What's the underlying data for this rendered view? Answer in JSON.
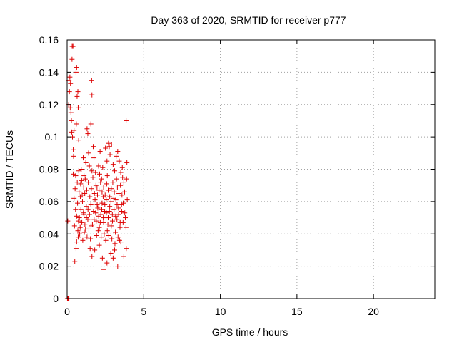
{
  "chart_data": {
    "type": "scatter",
    "title": "Day 363 of 2020, SRMTID for receiver p777",
    "xlabel": "GPS time / hours",
    "ylabel": "SRMTID / TECUs",
    "xlim": [
      0,
      24
    ],
    "ylim": [
      0,
      0.16
    ],
    "x_ticks": [
      0,
      5,
      10,
      15,
      20
    ],
    "x_tick_labels": [
      "0",
      "5",
      "10",
      "15",
      "20"
    ],
    "y_ticks": [
      0,
      0.02,
      0.04,
      0.06,
      0.08,
      0.1,
      0.12,
      0.14,
      0.16
    ],
    "y_tick_labels": [
      "0",
      "0.02",
      "0.04",
      "0.06",
      "0.08",
      "0.1",
      "0.12",
      "0.14",
      "0.16"
    ],
    "grid": true,
    "marker": "plus",
    "color": "#dd0000",
    "series": [
      {
        "name": "SRMTID",
        "points": [
          [
            0.02,
            0.0
          ],
          [
            0.05,
            0.0
          ],
          [
            0.08,
            0.0
          ],
          [
            0.12,
            0.0
          ],
          [
            0.04,
            0.048
          ],
          [
            0.1,
            0.12
          ],
          [
            0.12,
            0.135
          ],
          [
            0.15,
            0.128
          ],
          [
            0.18,
            0.137
          ],
          [
            0.2,
            0.118
          ],
          [
            0.22,
            0.133
          ],
          [
            0.25,
            0.115
          ],
          [
            0.28,
            0.11
          ],
          [
            0.32,
            0.148
          ],
          [
            0.33,
            0.156
          ],
          [
            0.38,
            0.156
          ],
          [
            0.3,
            0.103
          ],
          [
            0.35,
            0.1
          ],
          [
            0.4,
            0.092
          ],
          [
            0.42,
            0.088
          ],
          [
            0.45,
            0.104
          ],
          [
            0.58,
            0.14
          ],
          [
            0.62,
            0.143
          ],
          [
            0.7,
            0.128
          ],
          [
            0.65,
            0.125
          ],
          [
            0.72,
            0.118
          ],
          [
            0.6,
            0.108
          ],
          [
            0.75,
            0.098
          ],
          [
            1.3,
            0.105
          ],
          [
            1.35,
            0.102
          ],
          [
            1.55,
            0.108
          ],
          [
            1.6,
            0.135
          ],
          [
            1.62,
            0.126
          ],
          [
            3.85,
            0.11
          ],
          [
            3.9,
            0.084
          ],
          [
            3.88,
            0.074
          ],
          [
            3.92,
            0.061
          ],
          [
            3.8,
            0.05
          ],
          [
            3.84,
            0.044
          ],
          [
            3.86,
            0.031
          ],
          [
            3.7,
            0.026
          ],
          [
            0.5,
            0.023
          ],
          [
            0.58,
            0.031
          ],
          [
            0.62,
            0.035
          ],
          [
            0.7,
            0.042
          ],
          [
            0.74,
            0.048
          ],
          [
            1.2,
            0.043
          ],
          [
            1.3,
            0.038
          ],
          [
            1.5,
            0.031
          ],
          [
            1.62,
            0.026
          ],
          [
            1.8,
            0.03
          ],
          [
            2.1,
            0.033
          ],
          [
            2.3,
            0.025
          ],
          [
            2.4,
            0.018
          ],
          [
            2.6,
            0.022
          ],
          [
            2.85,
            0.028
          ],
          [
            3.0,
            0.025
          ],
          [
            3.1,
            0.03
          ],
          [
            3.3,
            0.02
          ],
          [
            3.5,
            0.035
          ],
          [
            0.4,
            0.077
          ],
          [
            0.52,
            0.068
          ],
          [
            0.9,
            0.055
          ],
          [
            0.95,
            0.073
          ],
          [
            1.05,
            0.087
          ],
          [
            1.1,
            0.076
          ],
          [
            1.15,
            0.065
          ],
          [
            1.4,
            0.09
          ],
          [
            1.45,
            0.082
          ],
          [
            1.7,
            0.094
          ],
          [
            1.75,
            0.087
          ],
          [
            1.85,
            0.078
          ],
          [
            1.95,
            0.069
          ],
          [
            2.05,
            0.082
          ],
          [
            2.15,
            0.091
          ],
          [
            2.25,
            0.074
          ],
          [
            2.35,
            0.063
          ],
          [
            2.5,
            0.093
          ],
          [
            2.6,
            0.085
          ],
          [
            2.7,
            0.096
          ],
          [
            2.75,
            0.094
          ],
          [
            2.8,
            0.089
          ],
          [
            2.9,
            0.095
          ],
          [
            3.0,
            0.083
          ],
          [
            3.1,
            0.079
          ],
          [
            3.2,
            0.088
          ],
          [
            3.3,
            0.091
          ],
          [
            3.4,
            0.085
          ],
          [
            3.5,
            0.078
          ],
          [
            3.6,
            0.081
          ],
          [
            3.7,
            0.072
          ],
          [
            3.75,
            0.066
          ],
          [
            0.45,
            0.062
          ],
          [
            0.55,
            0.055
          ],
          [
            0.8,
            0.05
          ],
          [
            0.85,
            0.044
          ],
          [
            1.0,
            0.06
          ],
          [
            1.1,
            0.052
          ],
          [
            1.25,
            0.057
          ],
          [
            1.35,
            0.049
          ],
          [
            1.55,
            0.058
          ],
          [
            1.65,
            0.046
          ],
          [
            1.72,
            0.054
          ],
          [
            1.82,
            0.061
          ],
          [
            1.9,
            0.048
          ],
          [
            2.0,
            0.056
          ],
          [
            2.1,
            0.044
          ],
          [
            2.2,
            0.052
          ],
          [
            2.28,
            0.059
          ],
          [
            2.38,
            0.047
          ],
          [
            2.45,
            0.054
          ],
          [
            2.55,
            0.061
          ],
          [
            2.62,
            0.042
          ],
          [
            2.68,
            0.05
          ],
          [
            2.78,
            0.057
          ],
          [
            2.88,
            0.045
          ],
          [
            2.95,
            0.052
          ],
          [
            3.05,
            0.062
          ],
          [
            3.15,
            0.041
          ],
          [
            3.25,
            0.049
          ],
          [
            3.35,
            0.056
          ],
          [
            3.45,
            0.044
          ],
          [
            3.55,
            0.058
          ],
          [
            3.65,
            0.047
          ],
          [
            0.48,
            0.045
          ],
          [
            0.62,
            0.051
          ],
          [
            0.68,
            0.059
          ],
          [
            0.78,
            0.066
          ],
          [
            0.88,
            0.071
          ],
          [
            0.98,
            0.064
          ],
          [
            1.08,
            0.069
          ],
          [
            1.18,
            0.074
          ],
          [
            1.28,
            0.067
          ],
          [
            1.38,
            0.072
          ],
          [
            1.48,
            0.063
          ],
          [
            1.58,
            0.068
          ],
          [
            1.68,
            0.075
          ],
          [
            1.78,
            0.065
          ],
          [
            1.88,
            0.07
          ],
          [
            1.98,
            0.064
          ],
          [
            2.08,
            0.067
          ],
          [
            2.18,
            0.072
          ],
          [
            2.28,
            0.066
          ],
          [
            2.38,
            0.069
          ],
          [
            2.48,
            0.064
          ],
          [
            2.58,
            0.071
          ],
          [
            2.68,
            0.067
          ],
          [
            2.78,
            0.063
          ],
          [
            2.88,
            0.068
          ],
          [
            2.98,
            0.072
          ],
          [
            3.08,
            0.066
          ],
          [
            3.18,
            0.061
          ],
          [
            3.28,
            0.069
          ],
          [
            3.38,
            0.065
          ],
          [
            3.48,
            0.07
          ],
          [
            3.58,
            0.064
          ],
          [
            0.72,
            0.038
          ],
          [
            0.82,
            0.04
          ],
          [
            1.02,
            0.036
          ],
          [
            1.12,
            0.041
          ],
          [
            1.42,
            0.043
          ],
          [
            1.52,
            0.037
          ],
          [
            1.92,
            0.039
          ],
          [
            2.02,
            0.042
          ],
          [
            2.22,
            0.038
          ],
          [
            2.42,
            0.04
          ],
          [
            2.52,
            0.036
          ],
          [
            2.72,
            0.039
          ],
          [
            2.92,
            0.037
          ],
          [
            3.12,
            0.034
          ],
          [
            3.32,
            0.038
          ],
          [
            3.42,
            0.036
          ],
          [
            0.92,
            0.08
          ],
          [
            1.22,
            0.084
          ],
          [
            1.62,
            0.079
          ],
          [
            2.12,
            0.077
          ],
          [
            2.32,
            0.081
          ],
          [
            2.62,
            0.076
          ],
          [
            3.22,
            0.074
          ],
          [
            3.62,
            0.075
          ],
          [
            0.56,
            0.076
          ],
          [
            0.66,
            0.072
          ],
          [
            0.76,
            0.079
          ],
          [
            0.86,
            0.063
          ],
          [
            0.96,
            0.047
          ],
          [
            1.06,
            0.053
          ],
          [
            1.16,
            0.046
          ],
          [
            1.26,
            0.05
          ],
          [
            1.36,
            0.055
          ],
          [
            1.46,
            0.052
          ],
          [
            1.56,
            0.045
          ],
          [
            1.76,
            0.049
          ],
          [
            1.86,
            0.053
          ],
          [
            1.96,
            0.058
          ],
          [
            2.06,
            0.051
          ],
          [
            2.16,
            0.047
          ],
          [
            2.26,
            0.055
          ],
          [
            2.36,
            0.05
          ],
          [
            2.46,
            0.058
          ],
          [
            2.56,
            0.053
          ],
          [
            2.66,
            0.046
          ],
          [
            2.76,
            0.054
          ],
          [
            2.86,
            0.06
          ],
          [
            2.96,
            0.048
          ],
          [
            3.06,
            0.055
          ],
          [
            3.16,
            0.051
          ],
          [
            3.26,
            0.058
          ],
          [
            3.36,
            0.052
          ],
          [
            3.46,
            0.047
          ],
          [
            3.56,
            0.054
          ],
          [
            3.66,
            0.059
          ],
          [
            3.76,
            0.053
          ]
        ]
      }
    ]
  }
}
